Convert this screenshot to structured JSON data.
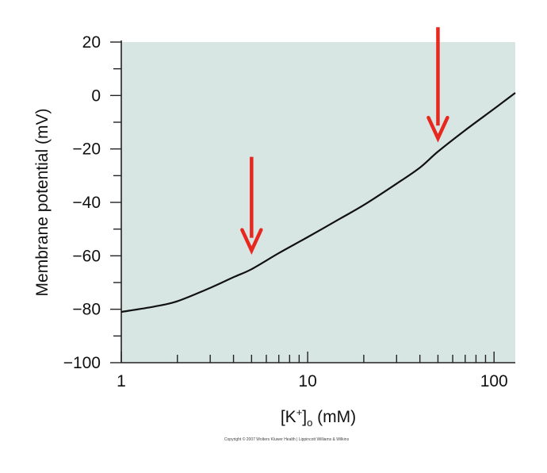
{
  "chart_data": {
    "type": "line",
    "title": "",
    "xlabel": "[K+]o (mM)",
    "ylabel": "Membrane potential (mV)",
    "x_scale": "log",
    "xlim": [
      1,
      130
    ],
    "ylim": [
      -100,
      20
    ],
    "x_ticks": [
      1,
      10,
      100
    ],
    "y_ticks": [
      20,
      0,
      -20,
      -40,
      -60,
      -80,
      -100
    ],
    "grid": false,
    "series": [
      {
        "x": [
          1,
          1.5,
          2,
          3,
          4,
          5,
          7,
          10,
          15,
          20,
          30,
          40,
          50,
          70,
          100,
          130
        ],
        "y": [
          -81,
          -79,
          -77,
          -72,
          -68,
          -65,
          -59,
          -53,
          -46,
          -41,
          -33,
          -27,
          -21,
          -13,
          -5,
          1
        ],
        "color": "#111111"
      }
    ],
    "annotations": [
      {
        "type": "arrow",
        "x": 5,
        "y": -58,
        "color": "#e8281e"
      },
      {
        "type": "arrow",
        "x": 50,
        "y": -16,
        "color": "#e8281e"
      }
    ],
    "plot_background": "#d8e6e3"
  },
  "copyright": "Copyright © 2007 Wolters Kluwer Health | Lippincott Williams & Wilkins"
}
